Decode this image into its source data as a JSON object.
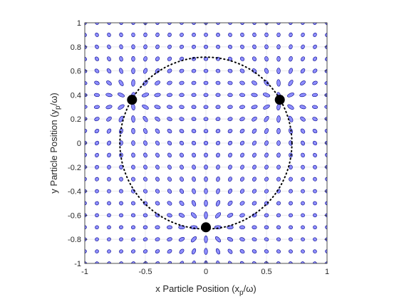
{
  "chart_data": {
    "type": "scatter",
    "title": "",
    "xlabel": "x Particle Position (x",
    "xlabel_sub": "p",
    "xlabel_tail": "/ω)",
    "ylabel": "y Particle Position (y",
    "ylabel_sub": "p",
    "ylabel_tail": "/ω)",
    "xlim": [
      -1,
      1
    ],
    "ylim": [
      -1,
      1
    ],
    "x_ticks": [
      -1,
      -0.5,
      0,
      0.5,
      1
    ],
    "x_tick_labels": [
      "-1",
      "-0.5",
      "0",
      "0.5",
      "1"
    ],
    "y_ticks": [
      -1,
      -0.8,
      -0.6,
      -0.4,
      -0.2,
      0,
      0.2,
      0.4,
      0.6,
      0.8,
      1
    ],
    "y_tick_labels": [
      "-1",
      "-0.8",
      "-0.6",
      "-0.4",
      "-0.2",
      "0",
      "0.2",
      "0.4",
      "0.6",
      "0.8",
      "1"
    ],
    "grid": true,
    "circle": {
      "center": [
        0,
        0
      ],
      "radius": 0.71,
      "style": "dotted"
    },
    "sources": [
      {
        "x": -0.61,
        "y": 0.36
      },
      {
        "x": 0.61,
        "y": 0.36
      },
      {
        "x": 0,
        "y": -0.7
      }
    ],
    "ellipse_grid": {
      "start": -1,
      "end": 1,
      "step": 0.1
    },
    "colors": {
      "ellipse_fill": "#7b7bff",
      "ellipse_edge": "#00008b",
      "marker": "#000000",
      "grid": "#e6e6e6",
      "axes": "#262626"
    }
  }
}
